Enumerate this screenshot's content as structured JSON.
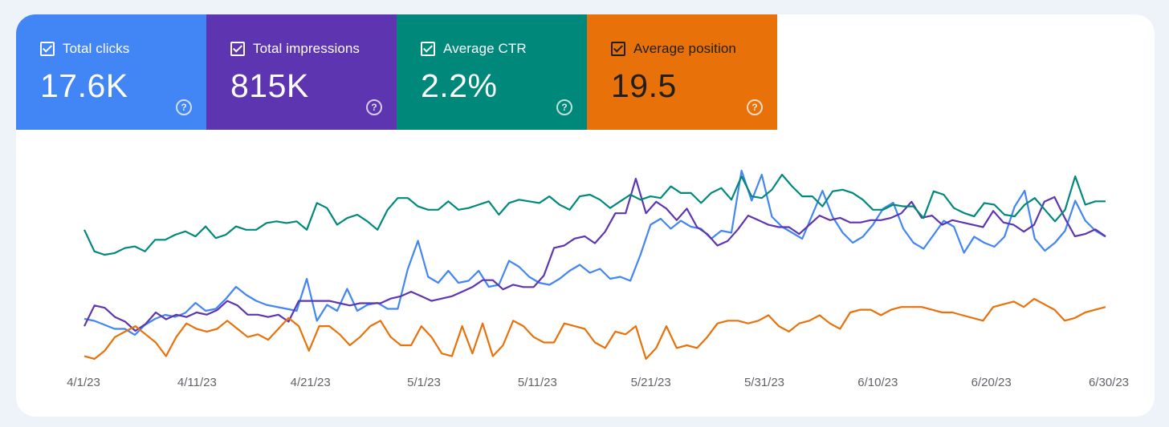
{
  "metrics": [
    {
      "label": "Total clicks",
      "value": "17.6K",
      "color": "#4285f4",
      "line_color": "#4285f4"
    },
    {
      "label": "Total impressions",
      "value": "815K",
      "color": "#5e35b1",
      "line_color": "#5e35b1"
    },
    {
      "label": "Average CTR",
      "value": "2.2%",
      "color": "#00897b",
      "line_color": "#00897b"
    },
    {
      "label": "Average position",
      "value": "19.5",
      "color": "#e8710a",
      "line_color": "#e8710a"
    }
  ],
  "help_glyph": "?",
  "chart_data": {
    "type": "line",
    "x_tick_labels": [
      "4/1/23",
      "4/11/23",
      "4/21/23",
      "5/1/23",
      "5/11/23",
      "5/21/23",
      "5/31/23",
      "6/10/23",
      "6/20/23",
      "6/30/23"
    ],
    "x_range": [
      "4/1/23",
      "6/30/23"
    ],
    "grid": false,
    "legend": "none",
    "y_axis_labels": "none",
    "series": [
      {
        "name": "Total clicks",
        "color": "#4285f4",
        "values": [
          2.5,
          2.4,
          2.2,
          2.0,
          2.0,
          1.7,
          2.2,
          2.5,
          2.7,
          2.6,
          2.8,
          3.3,
          2.9,
          3.0,
          3.5,
          4.1,
          3.7,
          3.4,
          3.2,
          3.1,
          3.0,
          2.9,
          4.5,
          2.4,
          3.2,
          2.9,
          4.0,
          2.9,
          3.2,
          3.3,
          3.0,
          3.0,
          5.0,
          6.4,
          4.6,
          4.3,
          4.9,
          4.3,
          4.4,
          4.9,
          4.1,
          4.2,
          5.4,
          5.1,
          4.6,
          4.3,
          4.2,
          4.5,
          4.9,
          5.2,
          4.8,
          5.0,
          4.5,
          4.6,
          4.4,
          5.7,
          7.2,
          7.5,
          7.0,
          7.4,
          7.1,
          7.0,
          6.5,
          6.9,
          6.8,
          9.9,
          8.4,
          9.7,
          7.6,
          7.1,
          6.8,
          6.5,
          7.7,
          8.9,
          7.6,
          6.8,
          6.3,
          6.6,
          7.2,
          8.0,
          8.3,
          7.0,
          6.3,
          6.0,
          6.7,
          7.4,
          7.1,
          5.8,
          6.6,
          6.3,
          6.1,
          6.6,
          8.1,
          8.9,
          6.5,
          5.9,
          6.3,
          6.9,
          8.4,
          7.4,
          6.9,
          6.6
        ]
      },
      {
        "name": "Total impressions",
        "color": "#5e35b1",
        "values": [
          3.4,
          4.3,
          4.2,
          3.8,
          3.6,
          3.2,
          3.5,
          4.0,
          3.7,
          3.9,
          3.8,
          4.0,
          3.9,
          4.1,
          4.5,
          4.3,
          3.9,
          3.9,
          3.8,
          3.9,
          3.6,
          4.5,
          4.5,
          4.5,
          4.5,
          4.4,
          4.3,
          4.4,
          4.4,
          4.4,
          4.6,
          4.7,
          4.9,
          4.7,
          4.5,
          4.6,
          4.7,
          4.9,
          5.1,
          5.4,
          5.4,
          5.0,
          5.2,
          5.1,
          5.1,
          5.6,
          6.8,
          6.9,
          7.2,
          7.3,
          7.0,
          7.5,
          8.3,
          8.3,
          9.8,
          8.3,
          8.8,
          8.5,
          8.0,
          8.5,
          7.7,
          7.4,
          6.9,
          7.1,
          7.6,
          8.2,
          8.0,
          7.8,
          7.7,
          7.7,
          7.4,
          7.8,
          8.2,
          8.0,
          8.1,
          7.9,
          7.9,
          8.0,
          8.0,
          8.1,
          8.3,
          8.8,
          8.1,
          8.2,
          7.8,
          8.0,
          7.9,
          7.8,
          7.7,
          8.4,
          7.9,
          7.8,
          7.5,
          7.8,
          8.8,
          9.0,
          8.1,
          7.3,
          7.4,
          7.6,
          7.3
        ]
      },
      {
        "name": "Average CTR",
        "color": "#00897b",
        "values": [
          5.6,
          4.3,
          4.1,
          4.2,
          4.5,
          4.6,
          4.3,
          5.0,
          5.0,
          5.3,
          5.5,
          5.2,
          5.8,
          5.1,
          5.3,
          5.8,
          5.6,
          5.6,
          6.0,
          6.1,
          6.0,
          6.1,
          5.6,
          7.2,
          6.9,
          5.9,
          6.3,
          6.5,
          6.1,
          5.6,
          6.8,
          7.5,
          7.5,
          7.0,
          6.8,
          6.8,
          7.3,
          6.8,
          6.9,
          7.1,
          7.3,
          6.5,
          7.2,
          7.4,
          7.3,
          7.2,
          7.6,
          7.1,
          6.8,
          7.6,
          7.7,
          7.4,
          6.9,
          7.3,
          7.7,
          7.4,
          7.6,
          7.5,
          8.2,
          7.8,
          7.8,
          7.2,
          7.8,
          8.1,
          7.4,
          8.8,
          7.6,
          7.5,
          8.0,
          8.9,
          8.2,
          7.6,
          7.6,
          7.0,
          7.9,
          8.0,
          7.8,
          7.4,
          6.8,
          6.8,
          7.1,
          7.0,
          7.0,
          6.3,
          7.9,
          7.7,
          6.9,
          6.6,
          6.4,
          7.2,
          7.1,
          6.5,
          6.4,
          7.1,
          7.5,
          6.8,
          6.1,
          6.8,
          8.8,
          7.1,
          7.3,
          7.3
        ]
      },
      {
        "name": "Average position",
        "color": "#e8710a",
        "values": [
          20.7,
          20.8,
          20.5,
          20.0,
          19.8,
          19.6,
          19.9,
          20.2,
          20.7,
          20.0,
          19.5,
          19.7,
          19.8,
          19.7,
          19.4,
          19.7,
          20.0,
          19.9,
          20.1,
          19.7,
          19.3,
          19.6,
          20.5,
          19.6,
          19.6,
          19.9,
          20.3,
          20.0,
          19.6,
          19.4,
          20.0,
          20.3,
          20.3,
          19.6,
          20.0,
          20.6,
          20.7,
          19.6,
          20.6,
          19.5,
          20.7,
          20.3,
          19.4,
          19.6,
          20.0,
          20.2,
          20.2,
          19.5,
          19.6,
          19.7,
          20.2,
          20.4,
          19.8,
          19.9,
          19.6,
          20.8,
          20.4,
          19.6,
          20.4,
          20.3,
          20.4,
          20.0,
          19.5,
          19.4,
          19.4,
          19.5,
          19.4,
          19.2,
          19.6,
          19.8,
          19.5,
          19.4,
          19.2,
          19.5,
          19.7,
          19.1,
          19.0,
          19.0,
          19.2,
          19.0,
          18.9,
          18.9,
          18.9,
          19.0,
          19.1,
          19.1,
          19.2,
          19.3,
          19.4,
          18.9,
          18.8,
          18.7,
          18.9,
          18.6,
          18.8,
          19.0,
          19.4,
          19.3,
          19.1,
          19.0,
          18.9
        ]
      }
    ]
  }
}
